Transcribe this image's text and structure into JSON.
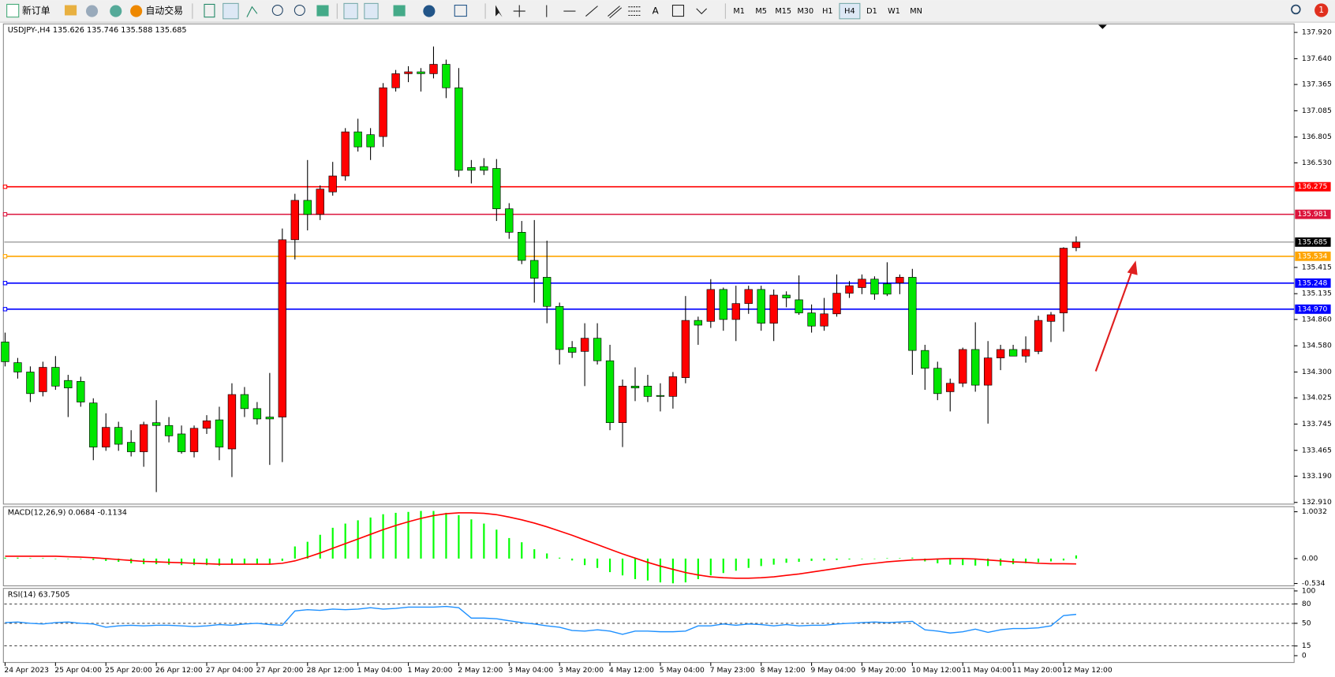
{
  "toolbar": {
    "new_order": "新订单",
    "auto_trading": "自动交易",
    "timeframes": [
      "M1",
      "M5",
      "M15",
      "M30",
      "H1",
      "H4",
      "D1",
      "W1",
      "MN"
    ],
    "active_timeframe": "H4",
    "notifications": "1"
  },
  "chart_data": [
    {
      "type": "candlestick",
      "title": "USDJPY-,H4 135.626 135.746 135.588 135.685",
      "categories": [
        "24 Apr 2023",
        null,
        null,
        null,
        "25 Apr 04:00",
        null,
        null,
        null,
        "25 Apr 20:00",
        null,
        null,
        null,
        "26 Apr 12:00",
        null,
        null,
        null,
        "27 Apr 04:00",
        null,
        null,
        null,
        "27 Apr 20:00",
        null,
        null,
        null,
        "28 Apr 12:00",
        null,
        null,
        null,
        "1 May 04:00",
        null,
        null,
        null,
        "1 May 20:00",
        null,
        null,
        null,
        "2 May 12:00",
        null,
        null,
        null,
        "3 May 04:00",
        null,
        null,
        null,
        "3 May 20:00",
        null,
        null,
        null,
        "4 May 12:00",
        null,
        null,
        null,
        "5 May 04:00",
        null,
        null,
        null,
        "7 May 23:00",
        null,
        null,
        null,
        "8 May 12:00",
        null,
        null,
        null,
        "9 May 04:00",
        null,
        null,
        null,
        "9 May 20:00",
        null,
        null,
        null,
        "10 May 12:00",
        null,
        null,
        null,
        "11 May 04:00",
        null,
        null,
        null,
        "11 May 20:00",
        null,
        null,
        null,
        "12 May 12:00",
        null
      ],
      "open": [
        134.62,
        134.4,
        134.3,
        134.09,
        134.35,
        134.21,
        134.2,
        133.97,
        133.5,
        133.71,
        133.55,
        133.45,
        133.76,
        133.73,
        133.64,
        133.45,
        133.7,
        133.79,
        133.48,
        134.06,
        133.91,
        133.82,
        133.82,
        135.71,
        136.13,
        135.98,
        136.22,
        136.39,
        136.86,
        136.83,
        136.81,
        137.33,
        137.48,
        137.5,
        137.48,
        137.58,
        137.33,
        136.48,
        136.49,
        136.47,
        136.04,
        135.79,
        135.49,
        135.31,
        135.0,
        134.56,
        134.52,
        134.66,
        134.42,
        133.76,
        134.15,
        134.15,
        134.05,
        134.04,
        134.24,
        134.85,
        134.84,
        135.18,
        134.86,
        135.03,
        135.18,
        134.82,
        135.12,
        135.07,
        134.93,
        134.79,
        134.92,
        135.14,
        135.2,
        135.29,
        135.24,
        135.25,
        135.31,
        134.53,
        134.34,
        134.09,
        134.18,
        134.54,
        134.16,
        134.45,
        134.54,
        134.47,
        134.52,
        134.84,
        134.93,
        135.626
      ],
      "high": [
        134.72,
        134.45,
        134.36,
        134.41,
        134.47,
        134.27,
        134.25,
        134.02,
        133.86,
        133.77,
        133.68,
        133.77,
        134.0,
        133.82,
        133.73,
        133.73,
        133.84,
        133.93,
        134.18,
        134.14,
        133.98,
        134.29,
        135.83,
        136.2,
        136.56,
        136.29,
        136.54,
        136.9,
        137.0,
        136.9,
        137.38,
        137.52,
        137.56,
        137.54,
        137.77,
        137.63,
        137.54,
        136.56,
        136.58,
        136.57,
        136.1,
        135.91,
        135.92,
        135.7,
        135.04,
        134.63,
        134.82,
        134.82,
        134.59,
        134.22,
        134.35,
        134.27,
        134.18,
        134.3,
        135.11,
        134.89,
        135.29,
        135.2,
        135.22,
        135.22,
        135.22,
        135.18,
        135.16,
        135.33,
        135.02,
        135.09,
        135.34,
        135.27,
        135.34,
        135.32,
        135.47,
        135.34,
        135.4,
        134.59,
        134.41,
        134.23,
        134.56,
        134.83,
        134.63,
        134.59,
        134.59,
        134.68,
        134.9,
        134.94,
        135.63,
        135.746
      ],
      "low": [
        134.36,
        134.23,
        133.98,
        134.04,
        134.11,
        133.82,
        133.93,
        133.36,
        133.46,
        133.46,
        133.4,
        133.29,
        133.02,
        133.55,
        133.43,
        133.39,
        133.64,
        133.36,
        133.18,
        133.82,
        133.74,
        133.31,
        133.34,
        135.5,
        135.81,
        135.92,
        136.18,
        136.34,
        136.65,
        136.56,
        136.7,
        137.29,
        137.39,
        137.29,
        137.43,
        137.22,
        136.38,
        136.31,
        136.4,
        135.91,
        135.72,
        135.45,
        135.04,
        134.82,
        134.38,
        134.45,
        134.15,
        134.38,
        133.68,
        133.5,
        133.99,
        133.98,
        133.88,
        133.91,
        134.18,
        134.59,
        134.77,
        134.74,
        134.63,
        134.92,
        134.74,
        134.63,
        134.99,
        134.91,
        134.72,
        134.74,
        134.89,
        135.09,
        135.13,
        135.07,
        135.11,
        135.13,
        134.27,
        134.11,
        134.0,
        133.88,
        134.14,
        134.09,
        133.75,
        134.32,
        134.47,
        134.4,
        134.49,
        134.62,
        134.73,
        135.588
      ],
      "close": [
        134.41,
        134.3,
        134.07,
        134.35,
        134.15,
        134.13,
        133.98,
        133.5,
        133.71,
        133.53,
        133.45,
        133.74,
        133.73,
        133.62,
        133.45,
        133.7,
        133.78,
        133.5,
        134.06,
        133.91,
        133.8,
        133.8,
        135.71,
        136.13,
        135.98,
        136.25,
        136.39,
        136.86,
        136.7,
        136.7,
        137.33,
        137.48,
        137.5,
        137.48,
        137.58,
        137.33,
        136.45,
        136.45,
        136.45,
        136.04,
        135.79,
        135.49,
        135.3,
        135.0,
        134.54,
        134.51,
        134.66,
        134.42,
        133.76,
        134.15,
        134.13,
        134.04,
        134.04,
        134.25,
        134.85,
        134.8,
        135.18,
        134.86,
        135.03,
        135.18,
        134.82,
        135.12,
        135.09,
        134.93,
        134.79,
        134.92,
        135.14,
        135.22,
        135.29,
        135.13,
        135.13,
        135.31,
        134.53,
        134.34,
        134.07,
        134.18,
        134.54,
        134.16,
        134.45,
        134.54,
        134.47,
        134.54,
        134.85,
        134.91,
        135.62,
        135.685
      ],
      "up_color": "#ff0000",
      "down_color": "#00e600",
      "ylim": [
        132.892,
        138.011
      ],
      "yticks": [
        {
          "value": 137.92,
          "label": "137.920"
        },
        {
          "value": 137.64,
          "label": "137.640"
        },
        137.365,
        137.085,
        136.805,
        {
          "value": 136.53,
          "label": "136.530"
        },
        135.415,
        135.135,
        {
          "value": 134.86,
          "label": "134.860"
        },
        {
          "value": 134.58,
          "label": "134.580"
        },
        {
          "value": 134.3,
          "label": "134.300"
        },
        134.025,
        133.745,
        133.465,
        {
          "value": 133.19,
          "label": "133.190"
        },
        {
          "value": 132.91,
          "label": "132.910"
        }
      ],
      "levels": [
        {
          "value": 136.275,
          "color": "#ff0000"
        },
        {
          "value": 135.981,
          "color": "#dc143c"
        },
        {
          "value": 135.534,
          "color": "#ffa500"
        },
        {
          "value": 135.248,
          "color": "#0000ff"
        },
        {
          "value": 134.97,
          "color": "#0000ff",
          "label": "134.970"
        }
      ],
      "grid": false
    },
    {
      "type": "macd",
      "title": "MACD(12,26,9) 0.0684 -0.1134",
      "values": [
        0.02,
        0.02,
        0.01,
        0.01,
        0,
        0,
        -0.01,
        -0.03,
        -0.05,
        -0.07,
        -0.1,
        -0.12,
        -0.12,
        -0.13,
        -0.14,
        -0.14,
        -0.14,
        -0.15,
        -0.13,
        -0.12,
        -0.12,
        -0.11,
        -0.05,
        0.26,
        0.36,
        0.51,
        0.66,
        0.75,
        0.82,
        0.88,
        0.95,
        0.98,
        1.0,
        1.02,
        1.02,
        0.98,
        0.93,
        0.84,
        0.75,
        0.62,
        0.44,
        0.35,
        0.2,
        0.11,
        0.02,
        -0.04,
        -0.14,
        -0.2,
        -0.29,
        -0.36,
        -0.44,
        -0.47,
        -0.51,
        -0.53,
        -0.51,
        -0.44,
        -0.36,
        -0.31,
        -0.26,
        -0.2,
        -0.16,
        -0.13,
        -0.09,
        -0.07,
        -0.05,
        -0.04,
        -0.03,
        -0.02,
        -0.01,
        0,
        0.01,
        0.01,
        0.02,
        -0.06,
        -0.1,
        -0.13,
        -0.14,
        -0.15,
        -0.16,
        -0.15,
        -0.12,
        -0.1,
        -0.08,
        -0.06,
        -0.04,
        0.0684
      ],
      "signal": [
        0.05,
        0.05,
        0.05,
        0.05,
        0.05,
        0.04,
        0.03,
        0.02,
        0,
        -0.02,
        -0.04,
        -0.06,
        -0.07,
        -0.08,
        -0.09,
        -0.1,
        -0.11,
        -0.12,
        -0.12,
        -0.12,
        -0.12,
        -0.12,
        -0.1,
        -0.05,
        0.03,
        0.12,
        0.22,
        0.32,
        0.42,
        0.52,
        0.62,
        0.71,
        0.79,
        0.86,
        0.92,
        0.96,
        0.98,
        0.98,
        0.97,
        0.94,
        0.89,
        0.83,
        0.76,
        0.68,
        0.59,
        0.5,
        0.4,
        0.3,
        0.2,
        0.1,
        0.01,
        -0.08,
        -0.16,
        -0.23,
        -0.3,
        -0.35,
        -0.39,
        -0.41,
        -0.42,
        -0.42,
        -0.41,
        -0.39,
        -0.36,
        -0.33,
        -0.29,
        -0.25,
        -0.21,
        -0.17,
        -0.13,
        -0.1,
        -0.07,
        -0.05,
        -0.03,
        -0.02,
        -0.01,
        0,
        0,
        -0.01,
        -0.03,
        -0.05,
        -0.07,
        -0.08,
        -0.1,
        -0.11,
        -0.11,
        -0.1134
      ],
      "color": "#00ff00",
      "signal_color": "#ff0000",
      "ylim": [
        -0.584,
        1.094
      ],
      "yticks": [
        1.0032,
        {
          "value": 0,
          "label": "0.00"
        },
        -0.534
      ]
    },
    {
      "type": "line",
      "title": "RSI(14) 63.7505",
      "values": [
        51,
        52,
        50,
        49,
        51,
        52,
        50,
        49,
        44,
        46,
        47,
        46,
        47,
        47,
        46,
        45,
        46,
        48,
        47,
        49,
        50,
        48,
        47,
        69,
        71,
        70,
        72,
        71,
        72,
        74,
        72,
        73,
        75,
        75,
        75,
        76,
        74,
        58,
        58,
        57,
        54,
        51,
        49,
        46,
        44,
        39,
        38,
        40,
        38,
        33,
        38,
        38,
        37,
        37,
        38,
        46,
        46,
        49,
        47,
        49,
        48,
        46,
        48,
        46,
        47,
        47,
        49,
        50,
        51,
        52,
        51,
        52,
        53,
        40,
        38,
        35,
        37,
        41,
        36,
        40,
        42,
        42,
        43,
        46,
        62,
        63.7505
      ],
      "color": "#1e90ff",
      "levels": [
        80,
        50,
        15
      ],
      "ylim": [
        -10.5,
        102.6
      ],
      "yticks": [
        100,
        80,
        50,
        15,
        0
      ]
    }
  ]
}
